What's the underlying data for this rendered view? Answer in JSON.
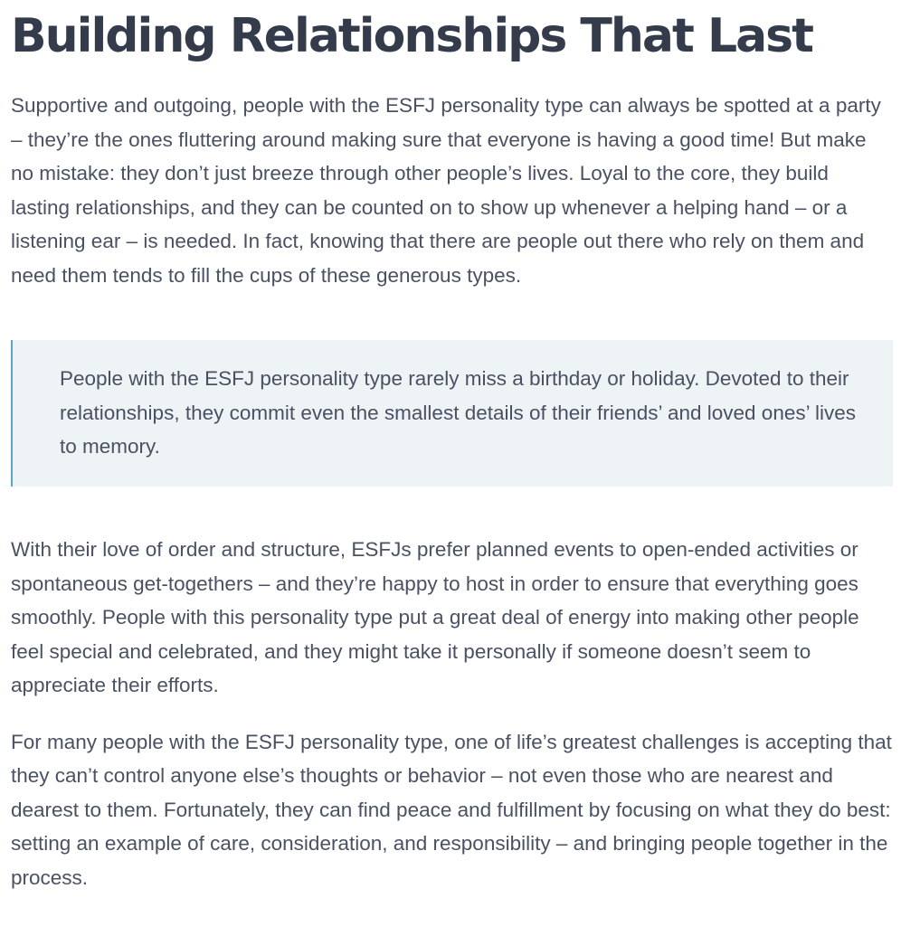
{
  "article": {
    "title": "Building Relationships That Last",
    "paragraphs": [
      "Supportive and outgoing, people with the ESFJ personality type can always be spotted at a party – they’re the ones fluttering around making sure that everyone is having a good time! But make no mistake: they don’t just breeze through other people’s lives. Loyal to the core, they build lasting relationships, and they can be counted on to show up whenever a helping hand – or a listening ear – is needed. In fact, knowing that there are people out there who rely on them and need them tends to fill the cups of these generous types.",
      "With their love of order and structure, ESFJs prefer planned events to open-ended activities or spontaneous get-togethers – and they’re happy to host in order to ensure that everything goes smoothly. People with this personality type put a great deal of energy into making other people feel special and celebrated, and they might take it personally if someone doesn’t seem to appreciate their efforts.",
      "For many people with the ESFJ personality type, one of life’s greatest challenges is accepting that they can’t control anyone else’s thoughts or behavior – not even those who are nearest and dearest to them. Fortunately, they can find peace and fulfillment by focusing on what they do best: setting an example of care, consideration, and responsibility – and bringing people together in the process."
    ],
    "quote": "People with the ESFJ personality type rarely miss a birthday or holiday. Devoted to their relationships, they commit even the smallest details of their friends’ and loved ones’ lives to memory."
  },
  "colors": {
    "heading": "#343c4c",
    "body_text": "#4a5162",
    "quote_background": "#eef3f6",
    "quote_border": "#5aa7c9"
  }
}
